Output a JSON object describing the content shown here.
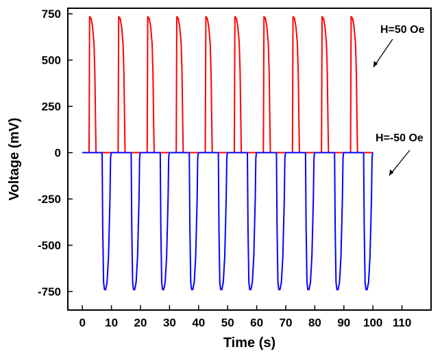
{
  "chart_data": {
    "type": "line",
    "title": "",
    "xlabel": "Time (s)",
    "ylabel": "Voltage (mV)",
    "xlim": [
      -5,
      120
    ],
    "ylim": [
      -850,
      780
    ],
    "xticks": [
      0,
      10,
      20,
      30,
      40,
      50,
      60,
      70,
      80,
      90,
      100,
      110
    ],
    "yticks": [
      -750,
      -500,
      -250,
      0,
      250,
      500,
      750
    ],
    "grid": false,
    "legend": "none",
    "series": [
      {
        "color": "#ff0000",
        "x": [
          0,
          2.3,
          2.5,
          3.0,
          3.5,
          4.0,
          4.3,
          4.5,
          4.7,
          12.3,
          12.5,
          13.0,
          13.5,
          14.0,
          14.3,
          14.5,
          14.7,
          22.3,
          22.5,
          23.0,
          23.5,
          24.0,
          24.3,
          24.5,
          24.7,
          32.3,
          32.5,
          33.0,
          33.5,
          34.0,
          34.3,
          34.5,
          34.7,
          42.3,
          42.5,
          43.0,
          43.5,
          44.0,
          44.3,
          44.5,
          44.7,
          52.3,
          52.5,
          53.0,
          53.5,
          54.0,
          54.3,
          54.5,
          54.7,
          62.3,
          62.5,
          63.0,
          63.5,
          64.0,
          64.3,
          64.5,
          64.7,
          72.3,
          72.5,
          73.0,
          73.5,
          74.0,
          74.3,
          74.5,
          74.7,
          82.3,
          82.5,
          83.0,
          83.5,
          84.0,
          84.3,
          84.5,
          84.7,
          92.3,
          92.5,
          93.0,
          93.5,
          94.0,
          94.3,
          94.5,
          94.7,
          100
        ],
        "y": [
          0,
          0,
          735,
          725,
          680,
          590,
          430,
          200,
          0,
          0,
          735,
          725,
          680,
          590,
          430,
          200,
          0,
          0,
          735,
          725,
          680,
          590,
          430,
          200,
          0,
          0,
          735,
          725,
          680,
          590,
          430,
          200,
          0,
          0,
          735,
          725,
          680,
          590,
          430,
          200,
          0,
          0,
          735,
          725,
          680,
          590,
          430,
          200,
          0,
          0,
          735,
          725,
          680,
          590,
          430,
          200,
          0,
          0,
          735,
          725,
          680,
          590,
          430,
          200,
          0,
          0,
          735,
          725,
          680,
          590,
          430,
          200,
          0,
          0,
          735,
          725,
          680,
          590,
          430,
          200,
          0,
          0
        ]
      },
      {
        "color": "#0000ff",
        "x": [
          0,
          6.8,
          7.0,
          7.3,
          7.6,
          8.0,
          8.5,
          9.0,
          9.5,
          9.7,
          9.9,
          16.8,
          17.0,
          17.3,
          17.6,
          18.0,
          18.5,
          19.0,
          19.5,
          19.7,
          19.9,
          26.8,
          27.0,
          27.3,
          27.6,
          28.0,
          28.5,
          29.0,
          29.5,
          29.7,
          29.9,
          36.8,
          37.0,
          37.3,
          37.6,
          38.0,
          38.5,
          39.0,
          39.5,
          39.7,
          39.9,
          46.8,
          47.0,
          47.3,
          47.6,
          48.0,
          48.5,
          49.0,
          49.5,
          49.7,
          49.9,
          56.8,
          57.0,
          57.3,
          57.6,
          58.0,
          58.5,
          59.0,
          59.5,
          59.7,
          59.9,
          66.8,
          67.0,
          67.3,
          67.6,
          68.0,
          68.5,
          69.0,
          69.5,
          69.7,
          69.9,
          76.8,
          77.0,
          77.3,
          77.6,
          78.0,
          78.5,
          79.0,
          79.5,
          79.7,
          79.9,
          86.8,
          87.0,
          87.3,
          87.6,
          88.0,
          88.5,
          89.0,
          89.5,
          89.7,
          89.9,
          96.8,
          97.0,
          97.3,
          97.6,
          98.0,
          98.5,
          99.0,
          99.5,
          99.7,
          99.9,
          100
        ],
        "y": [
          0,
          0,
          -400,
          -700,
          -740,
          -740,
          -700,
          -560,
          -250,
          -30,
          0,
          0,
          -400,
          -700,
          -740,
          -740,
          -700,
          -560,
          -250,
          -30,
          0,
          0,
          -400,
          -700,
          -740,
          -740,
          -700,
          -560,
          -250,
          -30,
          0,
          0,
          -400,
          -700,
          -740,
          -740,
          -700,
          -560,
          -250,
          -30,
          0,
          0,
          -400,
          -700,
          -740,
          -740,
          -700,
          -560,
          -250,
          -30,
          0,
          0,
          -400,
          -700,
          -740,
          -740,
          -700,
          -560,
          -250,
          -30,
          0,
          0,
          -400,
          -700,
          -740,
          -740,
          -700,
          -560,
          -250,
          -30,
          0,
          0,
          -400,
          -700,
          -740,
          -740,
          -700,
          -560,
          -250,
          -30,
          0,
          0,
          -400,
          -700,
          -740,
          -740,
          -700,
          -560,
          -250,
          -30,
          0,
          0,
          -400,
          -700,
          -740,
          -740,
          -700,
          -560,
          -250,
          -30,
          0,
          0
        ]
      }
    ],
    "annotations": [
      {
        "text": "H=50 Oe",
        "points_to_series": 0
      },
      {
        "text": "H=-50 Oe",
        "points_to_series": 1
      }
    ]
  }
}
